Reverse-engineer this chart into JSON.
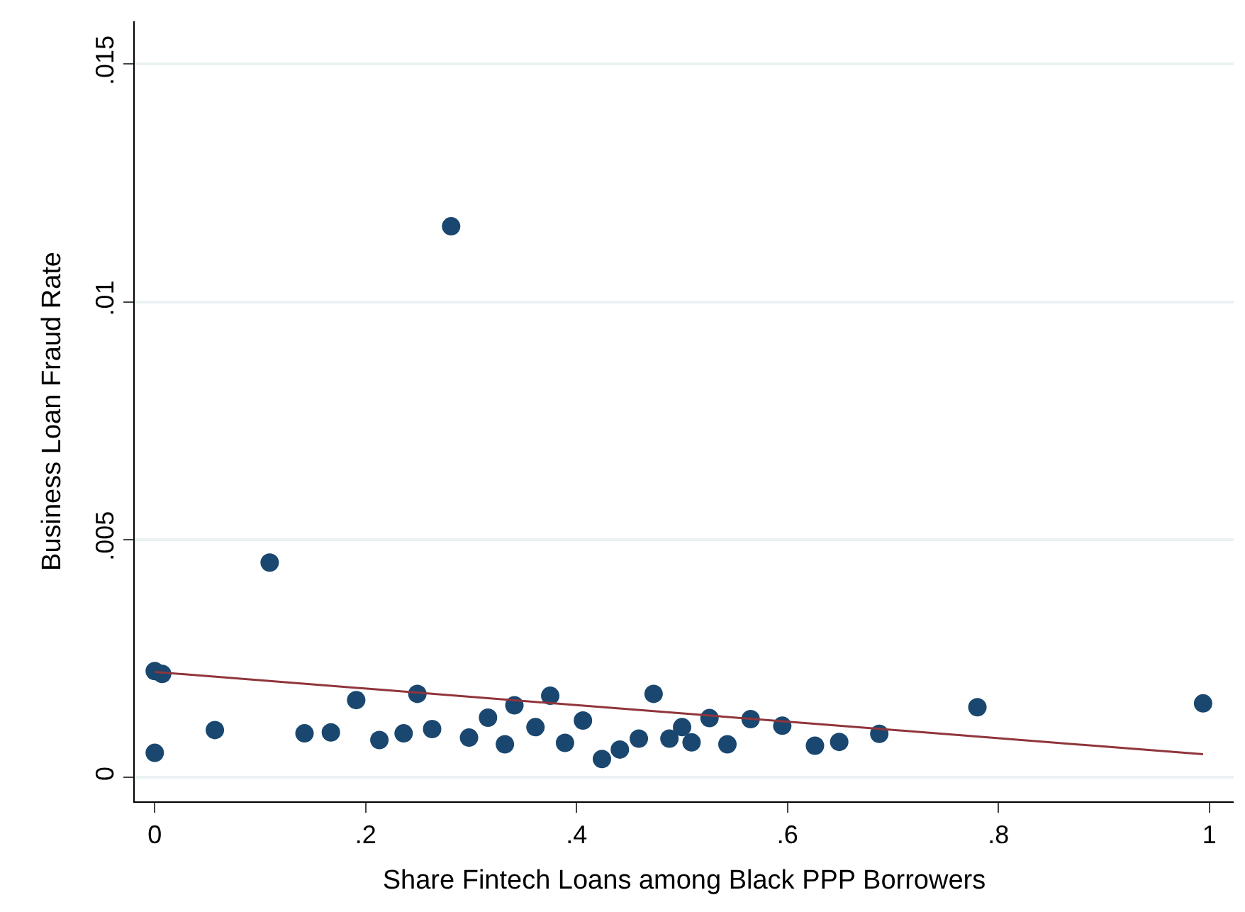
{
  "chart_data": {
    "type": "scatter",
    "xlabel": "Share Fintech Loans among Black PPP Borrowers",
    "ylabel": "Business Loan Fraud Rate",
    "xlim": [
      -0.019,
      1.023
    ],
    "ylim": [
      -0.0005,
      0.0159
    ],
    "xticks": [
      {
        "value": 0,
        "label": "0"
      },
      {
        "value": 0.2,
        "label": ".2"
      },
      {
        "value": 0.4,
        "label": ".4"
      },
      {
        "value": 0.6,
        "label": ".6"
      },
      {
        "value": 0.8,
        "label": ".8"
      },
      {
        "value": 1,
        "label": "1"
      }
    ],
    "yticks": [
      {
        "value": 0,
        "label": "0"
      },
      {
        "value": 0.005,
        "label": ".005"
      },
      {
        "value": 0.01,
        "label": ".01"
      },
      {
        "value": 0.015,
        "label": ".015"
      }
    ],
    "grid": "y",
    "marker": "circle",
    "series": [
      {
        "color": "#1a476f",
        "x": [
          0.0,
          0.007,
          0.0,
          0.057,
          0.109,
          0.142,
          0.167,
          0.191,
          0.213,
          0.236,
          0.249,
          0.263,
          0.281,
          0.298,
          0.316,
          0.332,
          0.341,
          0.361,
          0.375,
          0.389,
          0.406,
          0.424,
          0.441,
          0.459,
          0.473,
          0.488,
          0.5,
          0.509,
          0.526,
          0.543,
          0.565,
          0.595,
          0.626,
          0.649,
          0.687,
          0.78,
          0.994
        ],
        "values": [
          0.00224,
          0.00218,
          0.00052,
          0.001,
          0.00452,
          0.00093,
          0.00095,
          0.00163,
          0.00079,
          0.00093,
          0.00176,
          0.00102,
          0.01159,
          0.00084,
          0.00126,
          0.0007,
          0.00152,
          0.00106,
          0.00172,
          0.00073,
          0.0012,
          0.00039,
          0.00059,
          0.00082,
          0.00176,
          0.00082,
          0.00106,
          0.00074,
          0.00125,
          0.0007,
          0.00123,
          0.00109,
          0.00067,
          0.00075,
          0.00092,
          0.00148,
          0.00156
        ]
      },
      {
        "type": "line",
        "color": "#90353b",
        "x": [
          0.0,
          0.994
        ],
        "values": [
          0.00222,
          0.00049
        ],
        "marker": "none",
        "line_style": "solid"
      }
    ]
  }
}
